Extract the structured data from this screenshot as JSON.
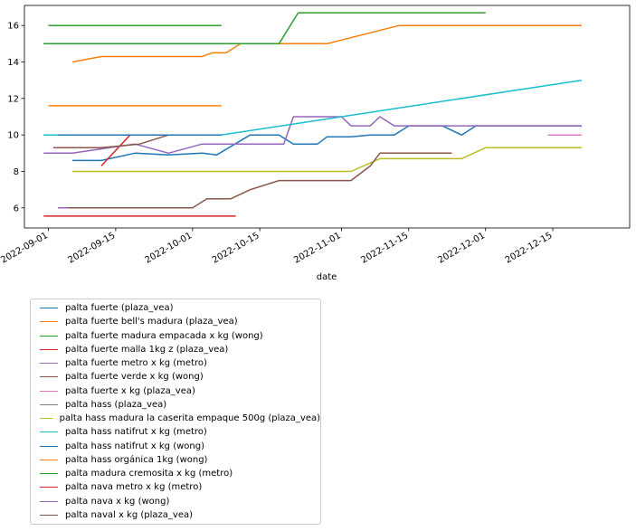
{
  "chart_data": {
    "type": "line",
    "title": "",
    "xlabel": "date",
    "ylabel": "",
    "xlim": [
      "2022-08-27",
      "2022-12-31"
    ],
    "ylim": [
      4.9,
      17.1
    ],
    "yticks": [
      6,
      8,
      10,
      12,
      14,
      16
    ],
    "xticks": [
      "2022-09-01",
      "2022-09-15",
      "2022-10-01",
      "2022-10-15",
      "2022-11-01",
      "2022-11-15",
      "2022-12-01",
      "2022-12-15"
    ],
    "legend_position": "below",
    "series": [
      {
        "name": "palta fuerte (plaza_vea)",
        "color": "#1f77b4",
        "points": [
          [
            "2022-09-06",
            8.6
          ],
          [
            "2022-09-12",
            8.6
          ],
          [
            "2022-09-19",
            9.0
          ],
          [
            "2022-09-26",
            8.9
          ],
          [
            "2022-10-03",
            9.0
          ],
          [
            "2022-10-06",
            8.9
          ],
          [
            "2022-10-13",
            10.0
          ],
          [
            "2022-10-19",
            10.0
          ],
          [
            "2022-10-22",
            9.5
          ],
          [
            "2022-10-27",
            9.5
          ],
          [
            "2022-10-29",
            9.9
          ],
          [
            "2022-11-03",
            9.9
          ],
          [
            "2022-11-07",
            10.0
          ],
          [
            "2022-11-12",
            10.0
          ],
          [
            "2022-11-15",
            10.5
          ],
          [
            "2022-11-22",
            10.5
          ],
          [
            "2022-11-26",
            10.0
          ],
          [
            "2022-11-29",
            10.5
          ],
          [
            "2022-12-21",
            10.5
          ]
        ]
      },
      {
        "name": "palta fuerte bell's madura (plaza_vea)",
        "color": "#ff7f0e",
        "points": [
          [
            "2022-09-06",
            14.0
          ],
          [
            "2022-09-12",
            14.3
          ],
          [
            "2022-10-03",
            14.3
          ],
          [
            "2022-10-05",
            14.5
          ],
          [
            "2022-10-08",
            14.5
          ],
          [
            "2022-10-11",
            15.0
          ],
          [
            "2022-10-29",
            15.0
          ],
          [
            "2022-11-13",
            16.0
          ],
          [
            "2022-12-21",
            16.0
          ]
        ]
      },
      {
        "name": "palta fuerte madura empacada x kg (wong)",
        "color": "#2ca02c",
        "points": [
          [
            "2022-08-31",
            15.0
          ],
          [
            "2022-10-19",
            15.0
          ],
          [
            "2022-10-23",
            16.7
          ],
          [
            "2022-12-01",
            16.7
          ]
        ]
      },
      {
        "name": "palta fuerte malla 1kg z (plaza_vea)",
        "color": "#d62728",
        "points": [
          [
            "2022-09-12",
            8.3
          ],
          [
            "2022-09-18",
            10.0
          ]
        ]
      },
      {
        "name": "palta fuerte metro x kg (metro)",
        "color": "#9467bd",
        "points": [
          [
            "2022-08-31",
            9.0
          ],
          [
            "2022-09-06",
            9.0
          ],
          [
            "2022-09-19",
            9.5
          ],
          [
            "2022-09-26",
            9.0
          ],
          [
            "2022-10-03",
            9.5
          ],
          [
            "2022-10-20",
            9.5
          ],
          [
            "2022-10-22",
            11.0
          ],
          [
            "2022-11-01",
            11.0
          ],
          [
            "2022-11-03",
            10.5
          ],
          [
            "2022-11-07",
            10.5
          ],
          [
            "2022-11-09",
            11.0
          ],
          [
            "2022-11-12",
            10.5
          ],
          [
            "2022-12-21",
            10.5
          ]
        ]
      },
      {
        "name": "palta fuerte verde x kg (wong)",
        "color": "#8c564b",
        "points": [
          [
            "2022-09-02",
            9.3
          ],
          [
            "2022-09-12",
            9.3
          ],
          [
            "2022-09-20",
            9.5
          ],
          [
            "2022-09-26",
            10.0
          ],
          [
            "2022-10-03",
            10.0
          ]
        ]
      },
      {
        "name": "palta fuerte x kg (plaza_vea)",
        "color": "#e377c2",
        "points": [
          [
            "2022-12-14",
            10.0
          ],
          [
            "2022-12-21",
            10.0
          ]
        ]
      },
      {
        "name": "palta hass (plaza_vea)",
        "color": "#7f7f7f",
        "points": [
          [
            "2022-09-03",
            6.0
          ],
          [
            "2022-10-01",
            6.0
          ]
        ]
      },
      {
        "name": "palta hass madura la caserita empaque 500g (plaza_vea)",
        "color": "#bcbd22",
        "points": [
          [
            "2022-09-06",
            8.0
          ],
          [
            "2022-11-03",
            8.0
          ],
          [
            "2022-11-09",
            8.7
          ],
          [
            "2022-11-26",
            8.7
          ],
          [
            "2022-12-01",
            9.3
          ],
          [
            "2022-12-21",
            9.3
          ]
        ]
      },
      {
        "name": "palta hass natifrut x kg (metro)",
        "color": "#17becf",
        "points": [
          [
            "2022-08-31",
            10.0
          ],
          [
            "2022-10-07",
            10.0
          ],
          [
            "2022-12-21",
            13.0
          ]
        ]
      },
      {
        "name": "palta hass natifrut x kg (wong)",
        "color": "#1f77b4",
        "points": [
          [
            "2022-09-03",
            10.0
          ],
          [
            "2022-10-07",
            10.0
          ]
        ]
      },
      {
        "name": "palta hass orgánica 1kg (wong)",
        "color": "#ff7f0e",
        "points": [
          [
            "2022-09-01",
            11.6
          ],
          [
            "2022-10-07",
            11.6
          ]
        ]
      },
      {
        "name": "palta madura cremosita x kg (metro)",
        "color": "#2ca02c",
        "points": [
          [
            "2022-09-01",
            16.0
          ],
          [
            "2022-10-07",
            16.0
          ]
        ]
      },
      {
        "name": "palta nava metro x kg (metro)",
        "color": "#d62728",
        "points": [
          [
            "2022-08-31",
            5.55
          ],
          [
            "2022-10-10",
            5.55
          ]
        ]
      },
      {
        "name": "palta nava x kg (wong)",
        "color": "#9467bd",
        "points": [
          [
            "2022-09-03",
            6.0
          ],
          [
            "2022-09-06",
            6.0
          ]
        ]
      },
      {
        "name": "palta naval x kg (plaza_vea)",
        "color": "#8c564b",
        "points": [
          [
            "2022-09-05",
            6.0
          ],
          [
            "2022-10-01",
            6.0
          ],
          [
            "2022-10-04",
            6.5
          ],
          [
            "2022-10-09",
            6.5
          ],
          [
            "2022-10-13",
            7.0
          ],
          [
            "2022-10-19",
            7.5
          ],
          [
            "2022-11-03",
            7.5
          ],
          [
            "2022-11-07",
            8.3
          ],
          [
            "2022-11-09",
            9.0
          ],
          [
            "2022-11-24",
            9.0
          ]
        ]
      }
    ]
  }
}
